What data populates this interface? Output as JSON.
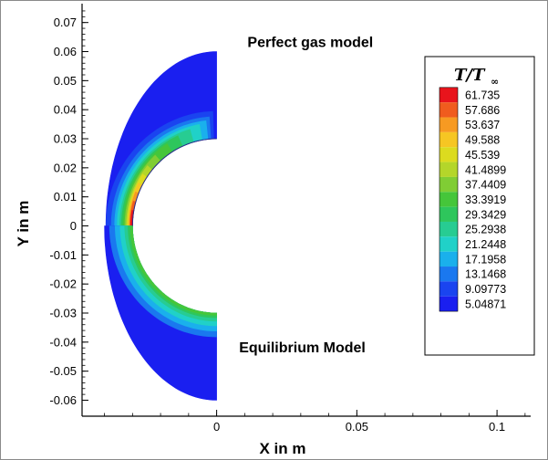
{
  "chart_data": {
    "type": "heatmap",
    "xlabel": "X in m",
    "ylabel": "Y in m",
    "xlim": [
      -0.048,
      0.112
    ],
    "ylim": [
      -0.0655,
      0.0765
    ],
    "x_ticks": [
      {
        "value": 0,
        "label": "0"
      },
      {
        "value": 0.05,
        "label": "0.05"
      },
      {
        "value": 0.1,
        "label": "0.1"
      }
    ],
    "y_ticks": [
      {
        "value": 0.07,
        "label": "0.07"
      },
      {
        "value": 0.06,
        "label": "0.06"
      },
      {
        "value": 0.05,
        "label": "0.05"
      },
      {
        "value": 0.04,
        "label": "0.04"
      },
      {
        "value": 0.03,
        "label": "0.03"
      },
      {
        "value": 0.02,
        "label": "0.02"
      },
      {
        "value": 0.01,
        "label": "0.01"
      },
      {
        "value": 0,
        "label": "0"
      },
      {
        "value": -0.01,
        "label": "-0.01"
      },
      {
        "value": -0.02,
        "label": "-0.02"
      },
      {
        "value": -0.03,
        "label": "-0.03"
      },
      {
        "value": -0.04,
        "label": "-0.04"
      },
      {
        "value": -0.05,
        "label": "-0.05"
      },
      {
        "value": -0.06,
        "label": "-0.06"
      }
    ],
    "annotations": [
      {
        "text": "Perfect gas model",
        "x": 0.011,
        "y": 0.0615
      },
      {
        "text": "Equilibrium Model",
        "x": 0.008,
        "y": -0.0435
      }
    ],
    "legend": {
      "title_main": "T/T",
      "title_sub": "∞",
      "position": "right",
      "levels": [
        {
          "label": "61.735",
          "color": "#e8141c"
        },
        {
          "label": "57.686",
          "color": "#f05c1e"
        },
        {
          "label": "53.637",
          "color": "#f79a22"
        },
        {
          "label": "49.588",
          "color": "#f6c623"
        },
        {
          "label": "45.539",
          "color": "#dcdb1f"
        },
        {
          "label": "41.4899",
          "color": "#b4d62a"
        },
        {
          "label": "37.4409",
          "color": "#80cd34"
        },
        {
          "label": "33.3919",
          "color": "#45c63a"
        },
        {
          "label": "29.3429",
          "color": "#2ec65c"
        },
        {
          "label": "25.2938",
          "color": "#27cc92"
        },
        {
          "label": "21.2448",
          "color": "#20d1c8"
        },
        {
          "label": "17.1958",
          "color": "#1ab0ec"
        },
        {
          "label": "13.1468",
          "color": "#1a78ef"
        },
        {
          "label": "9.09773",
          "color": "#1a44f0"
        },
        {
          "label": "5.04871",
          "color": "#1a1ff0"
        }
      ]
    },
    "domain": {
      "upper_outer_radius": 0.0395,
      "inner_radius": 0.03,
      "upper_end_y": 0.06,
      "upper_shock_end_y": 0.046,
      "lower_outer_radius": 0.04,
      "lower_shock_end_y": -0.037,
      "lower_end_y": -0.06
    }
  }
}
